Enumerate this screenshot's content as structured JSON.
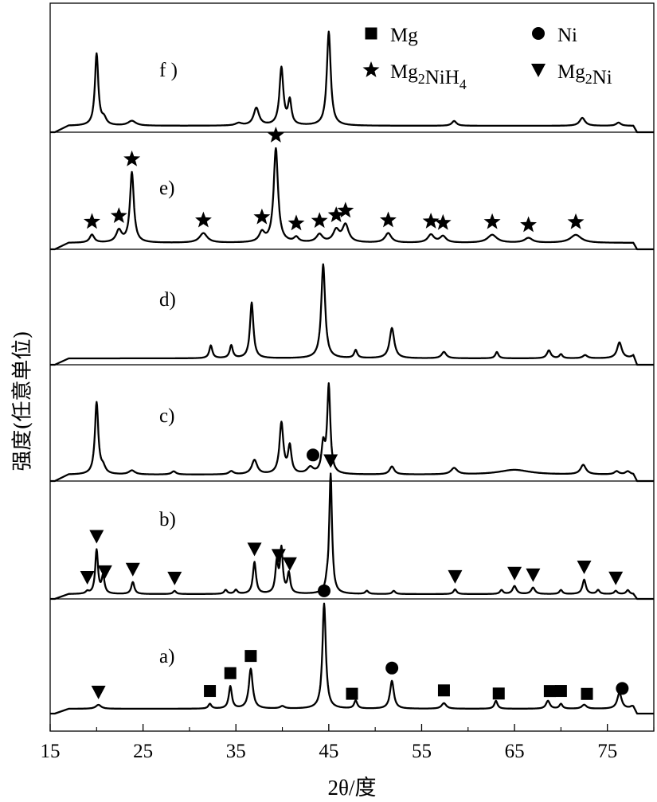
{
  "chart_data": {
    "type": "line",
    "title": "",
    "xlabel": "2θ/度",
    "ylabel": "强度(任意单位)",
    "xlim": [
      15,
      80
    ],
    "xticks": [
      15,
      25,
      35,
      45,
      55,
      65,
      75
    ],
    "grid": false,
    "legend": {
      "placement": "top-right",
      "entries": [
        {
          "marker": "square",
          "label": "Mg"
        },
        {
          "marker": "circle",
          "label": "Ni"
        },
        {
          "marker": "star",
          "label": "Mg2NiH4"
        },
        {
          "marker": "triangle-down",
          "label": "Mg2Ni"
        }
      ]
    },
    "panels": [
      {
        "label": "f )",
        "base": 8,
        "peaks": [
          [
            20.0,
            90,
            0.22
          ],
          [
            20.8,
            8,
            0.3
          ],
          [
            23.8,
            6,
            0.5
          ],
          [
            35.3,
            3,
            0.4
          ],
          [
            37.2,
            22,
            0.35
          ],
          [
            39.9,
            72,
            0.25
          ],
          [
            40.8,
            30,
            0.22
          ],
          [
            45.0,
            118,
            0.25
          ],
          [
            58.5,
            6,
            0.3
          ],
          [
            72.3,
            10,
            0.35
          ],
          [
            76.2,
            4,
            0.3
          ]
        ]
      },
      {
        "label": "e)",
        "base": 8,
        "peaks": [
          [
            19.5,
            10,
            0.3
          ],
          [
            22.4,
            15,
            0.35
          ],
          [
            23.8,
            88,
            0.25
          ],
          [
            31.5,
            12,
            0.5
          ],
          [
            37.8,
            12,
            0.35
          ],
          [
            39.3,
            118,
            0.28
          ],
          [
            41.5,
            6,
            0.3
          ],
          [
            44.0,
            10,
            0.4
          ],
          [
            45.8,
            15,
            0.4
          ],
          [
            46.8,
            22,
            0.4
          ],
          [
            51.4,
            12,
            0.4
          ],
          [
            56.0,
            10,
            0.4
          ],
          [
            57.3,
            8,
            0.4
          ],
          [
            62.6,
            10,
            0.6
          ],
          [
            66.5,
            6,
            0.5
          ],
          [
            71.6,
            10,
            0.7
          ]
        ],
        "markers": [
          [
            19.5,
            "star"
          ],
          [
            22.4,
            "star"
          ],
          [
            23.8,
            "star"
          ],
          [
            31.5,
            "star"
          ],
          [
            37.8,
            "star"
          ],
          [
            39.3,
            "star"
          ],
          [
            41.5,
            "star"
          ],
          [
            44.0,
            "star"
          ],
          [
            45.8,
            "star"
          ],
          [
            46.8,
            "star"
          ],
          [
            51.4,
            "star"
          ],
          [
            56.0,
            "star"
          ],
          [
            57.3,
            "star"
          ],
          [
            62.6,
            "star"
          ],
          [
            66.5,
            "star"
          ],
          [
            71.6,
            "star"
          ]
        ]
      },
      {
        "label": "d)",
        "base": 8,
        "peaks": [
          [
            32.3,
            16,
            0.2
          ],
          [
            34.5,
            16,
            0.2
          ],
          [
            36.7,
            70,
            0.22
          ],
          [
            44.4,
            118,
            0.25
          ],
          [
            47.9,
            10,
            0.2
          ],
          [
            51.8,
            38,
            0.3
          ],
          [
            57.4,
            8,
            0.3
          ],
          [
            63.1,
            8,
            0.2
          ],
          [
            68.7,
            10,
            0.25
          ],
          [
            70.0,
            5,
            0.2
          ],
          [
            72.6,
            4,
            0.3
          ],
          [
            76.3,
            20,
            0.3
          ],
          [
            77.9,
            4,
            0.3
          ]
        ]
      },
      {
        "label": "c)",
        "base": 8,
        "peaks": [
          [
            20.0,
            90,
            0.22
          ],
          [
            20.7,
            8,
            0.3
          ],
          [
            23.8,
            5,
            0.4
          ],
          [
            28.3,
            4,
            0.3
          ],
          [
            34.5,
            4,
            0.3
          ],
          [
            37.0,
            18,
            0.35
          ],
          [
            39.9,
            64,
            0.25
          ],
          [
            40.8,
            34,
            0.22
          ],
          [
            43.0,
            8,
            0.4
          ],
          [
            44.4,
            35,
            0.22
          ],
          [
            45.0,
            110,
            0.2
          ],
          [
            51.8,
            10,
            0.3
          ],
          [
            58.5,
            8,
            0.4
          ],
          [
            65.0,
            6,
            2.0
          ],
          [
            72.4,
            12,
            0.35
          ],
          [
            76.0,
            4,
            0.3
          ],
          [
            77.2,
            4,
            0.3
          ]
        ],
        "markers": [
          [
            43.3,
            "circle"
          ]
        ]
      },
      {
        "label": "b)",
        "base": 6,
        "peaks": [
          [
            19.0,
            3,
            0.2
          ],
          [
            20.0,
            55,
            0.18
          ],
          [
            20.7,
            22,
            0.18
          ],
          [
            23.9,
            15,
            0.2
          ],
          [
            28.4,
            4,
            0.2
          ],
          [
            33.9,
            5,
            0.2
          ],
          [
            35.0,
            5,
            0.2
          ],
          [
            37.0,
            40,
            0.2
          ],
          [
            39.4,
            38,
            0.18
          ],
          [
            39.9,
            55,
            0.18
          ],
          [
            40.7,
            25,
            0.18
          ],
          [
            44.8,
            8,
            0.18
          ],
          [
            45.2,
            150,
            0.18
          ],
          [
            49.1,
            4,
            0.2
          ],
          [
            52.0,
            4,
            0.2
          ],
          [
            58.6,
            6,
            0.2
          ],
          [
            63.6,
            5,
            0.2
          ],
          [
            65.0,
            10,
            0.25
          ],
          [
            67.0,
            8,
            0.25
          ],
          [
            70.0,
            5,
            0.2
          ],
          [
            72.5,
            18,
            0.22
          ],
          [
            74.0,
            5,
            0.2
          ],
          [
            75.9,
            4,
            0.2
          ],
          [
            77.2,
            5,
            0.2
          ]
        ],
        "markers": [
          [
            19.0,
            "triangle-down"
          ],
          [
            20.0,
            "triangle-down"
          ],
          [
            20.9,
            "triangle-down"
          ],
          [
            23.9,
            "triangle-down"
          ],
          [
            28.4,
            "triangle-down"
          ],
          [
            37.0,
            "triangle-down"
          ],
          [
            39.6,
            "triangle-down"
          ],
          [
            40.8,
            "triangle-down"
          ],
          [
            45.2,
            "triangle-down"
          ],
          [
            58.6,
            "triangle-down"
          ],
          [
            65.0,
            "triangle-down"
          ],
          [
            67.0,
            "triangle-down"
          ],
          [
            72.5,
            "triangle-down"
          ],
          [
            75.9,
            "triangle-down"
          ]
        ]
      },
      {
        "label": "a)",
        "base": 6,
        "peaks": [
          [
            20.2,
            5,
            0.35
          ],
          [
            32.2,
            6,
            0.2
          ],
          [
            34.4,
            28,
            0.2
          ],
          [
            36.6,
            50,
            0.25
          ],
          [
            40.0,
            3,
            0.3
          ],
          [
            44.5,
            132,
            0.22
          ],
          [
            47.9,
            10,
            0.2
          ],
          [
            51.8,
            35,
            0.25
          ],
          [
            57.4,
            7,
            0.3
          ],
          [
            63.0,
            10,
            0.2
          ],
          [
            68.6,
            10,
            0.25
          ],
          [
            70.0,
            6,
            0.2
          ],
          [
            72.5,
            5,
            0.3
          ],
          [
            76.3,
            20,
            0.28
          ],
          [
            77.7,
            3,
            0.3
          ]
        ],
        "markers": [
          [
            20.2,
            "triangle-down"
          ],
          [
            32.2,
            "square"
          ],
          [
            34.4,
            "square"
          ],
          [
            36.6,
            "square"
          ],
          [
            44.5,
            "circle"
          ],
          [
            47.5,
            "square"
          ],
          [
            51.8,
            "circle"
          ],
          [
            57.4,
            "square"
          ],
          [
            63.3,
            "square"
          ],
          [
            68.8,
            "square"
          ],
          [
            70.0,
            "square"
          ],
          [
            72.8,
            "square"
          ],
          [
            76.6,
            "circle"
          ]
        ]
      }
    ]
  }
}
